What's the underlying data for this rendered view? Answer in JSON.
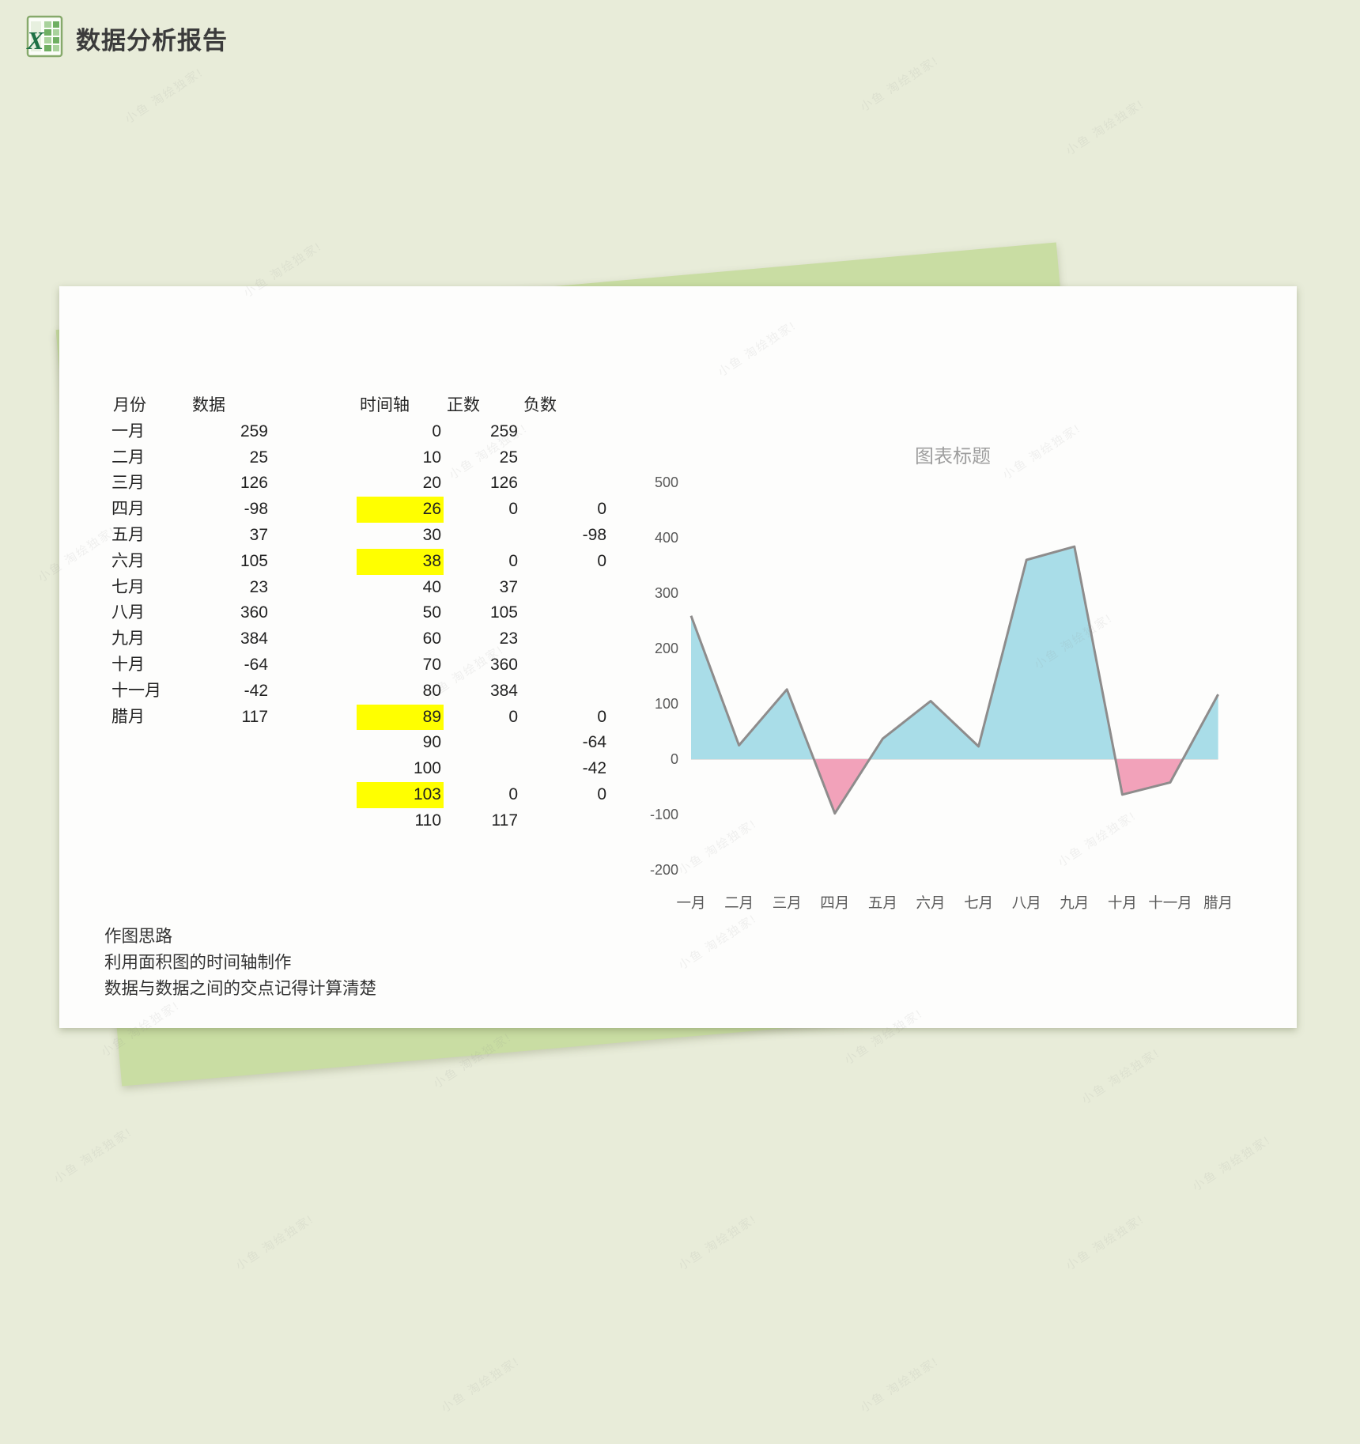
{
  "header": {
    "title": "数据分析报告"
  },
  "table": {
    "headers": [
      "月份",
      "数据",
      "时间轴",
      "正数",
      "负数"
    ],
    "rows": [
      [
        "一月",
        "259",
        "0",
        "259",
        ""
      ],
      [
        "二月",
        "25",
        "10",
        "25",
        ""
      ],
      [
        "三月",
        "126",
        "20",
        "126",
        ""
      ],
      [
        "四月",
        "-98",
        "26",
        "0",
        "0"
      ],
      [
        "五月",
        "37",
        "30",
        "",
        "-98"
      ],
      [
        "六月",
        "105",
        "38",
        "0",
        "0"
      ],
      [
        "七月",
        "23",
        "40",
        "37",
        ""
      ],
      [
        "八月",
        "360",
        "50",
        "105",
        ""
      ],
      [
        "九月",
        "384",
        "60",
        "23",
        ""
      ],
      [
        "十月",
        "-64",
        "70",
        "360",
        ""
      ],
      [
        "十一月",
        "-42",
        "80",
        "384",
        ""
      ],
      [
        "腊月",
        "117",
        "89",
        "0",
        "0"
      ],
      [
        "",
        "",
        "90",
        "",
        "-64"
      ],
      [
        "",
        "",
        "100",
        "",
        "-42"
      ],
      [
        "",
        "",
        "103",
        "0",
        "0"
      ],
      [
        "",
        "",
        "110",
        "117",
        ""
      ]
    ],
    "highlighted_timeline_values": [
      "26",
      "38",
      "89",
      "103"
    ]
  },
  "notes": [
    "作图思路",
    "利用面积图的时间轴制作",
    "数据与数据之间的交点记得计算清楚"
  ],
  "chart_data": {
    "type": "area",
    "title": "图表标题",
    "categories": [
      "一月",
      "二月",
      "三月",
      "四月",
      "五月",
      "六月",
      "七月",
      "八月",
      "九月",
      "十月",
      "十一月",
      "腊月"
    ],
    "series": [
      {
        "name": "数据",
        "values": [
          259,
          25,
          126,
          -98,
          37,
          105,
          23,
          360,
          384,
          -64,
          -42,
          117
        ]
      }
    ],
    "ylim": [
      -200,
      500
    ],
    "yticks": [
      500,
      400,
      300,
      200,
      100,
      0,
      -100,
      -200
    ],
    "gridlines": false,
    "legend": "none",
    "positive_fill": "#a9dde8",
    "negative_fill": "#f2a2ba",
    "line_color": "#8e8c8c",
    "axis_label_color": "#595959",
    "title_color": "#9e9e9e",
    "zero_axis_color": "#d9d9d9"
  },
  "colors": {
    "background": "#e8ecd9",
    "back_sheet": "#c9dda3",
    "card": "#fdfdfc",
    "highlight_yellow": "#ffff00",
    "excel_green": "#1e7145"
  },
  "watermark": {
    "text": "小鱼 淘绘独家!"
  }
}
